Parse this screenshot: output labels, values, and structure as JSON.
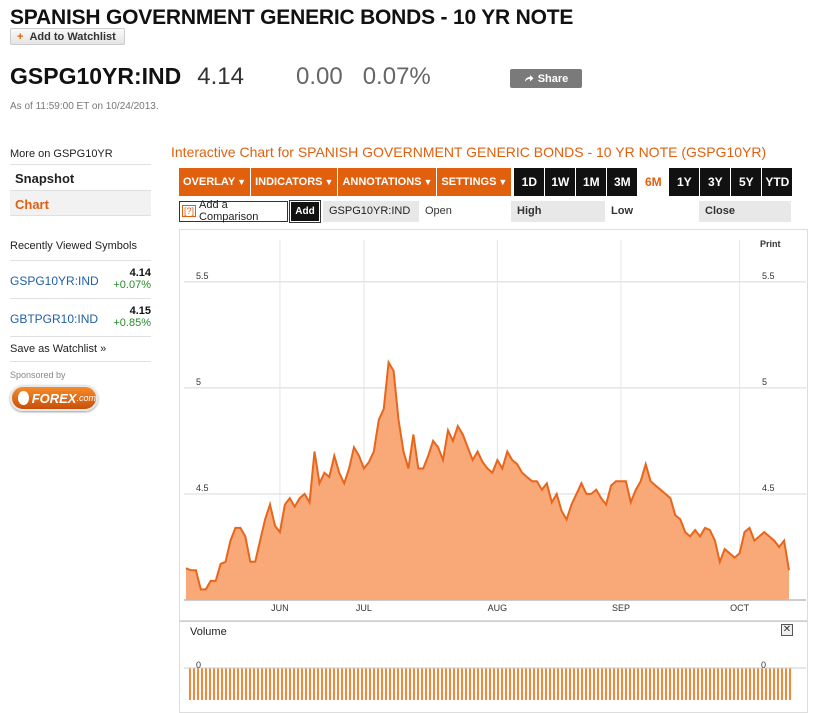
{
  "page": {
    "title": "SPANISH GOVERNMENT GENERIC BONDS - 10 YR NOTE",
    "watchlist_label": "Add to Watchlist"
  },
  "quote": {
    "symbol": "GSPG10YR:IND",
    "price": "4.14",
    "change": "0.00",
    "change_pct": "0.07%",
    "share_label": "Share",
    "as_of": "As of 11:59:00 ET on 10/24/2013."
  },
  "sidebar": {
    "more_on": "More on GSPG10YR",
    "links": [
      {
        "label": "Snapshot"
      },
      {
        "label": "Chart"
      }
    ],
    "recent_title": "Recently Viewed Symbols",
    "recent": [
      {
        "symbol": "GSPG10YR:IND",
        "price": "4.14",
        "change": "+0.07%"
      },
      {
        "symbol": "GBTPGR10:IND",
        "price": "4.15",
        "change": "+0.85%"
      }
    ],
    "save_label": "Save as Watchlist »",
    "sponsored": "Sponsored by",
    "sponsor_name": "FOREX",
    "sponsor_suffix": ".com"
  },
  "chart_header": {
    "title": "Interactive Chart for SPANISH GOVERNMENT GENERIC BONDS - 10 YR NOTE (GSPG10YR)",
    "menus": [
      {
        "label": "OVERLAY"
      },
      {
        "label": "INDICATORS"
      },
      {
        "label": "ANNOTATIONS"
      },
      {
        "label": "SETTINGS"
      }
    ],
    "ranges": [
      "1D",
      "1W",
      "1M",
      "3M",
      "6M",
      "1Y",
      "3Y",
      "5Y",
      "YTD"
    ],
    "active_range": "6M",
    "compare_help": "[?]",
    "compare_placeholder": "Add a Comparison",
    "add_label": "Add",
    "compare_symbol": "GSPG10YR:IND",
    "ohlc": [
      "Open",
      "High",
      "Low",
      "Close"
    ],
    "print_label": "Print",
    "volume_label": "Volume",
    "close_icon_glyph": "✕",
    "colors": {
      "accent": "#e0600e",
      "area_fill": "#f9a877",
      "area_line": "#e8661c",
      "volume_bar": "#f08a3a"
    }
  },
  "chart_data": {
    "type": "area",
    "title": "",
    "x_ticks": [
      "JUN",
      "JUL",
      "AUG",
      "SEP",
      "OCT"
    ],
    "y_ticks": [
      "4.5",
      "5",
      "5.5"
    ],
    "ylim": [
      4.0,
      5.65
    ],
    "grid": true,
    "series": [
      {
        "values": [
          4.15,
          4.14,
          4.14,
          4.05,
          4.05,
          4.09,
          4.09,
          4.17,
          4.18,
          4.28,
          4.34,
          4.34,
          4.3,
          4.18,
          4.18,
          4.28,
          4.38,
          4.45,
          4.35,
          4.32,
          4.45,
          4.48,
          4.44,
          4.48,
          4.5,
          4.46,
          4.7,
          4.55,
          4.6,
          4.58,
          4.68,
          4.6,
          4.55,
          4.62,
          4.72,
          4.68,
          4.62,
          4.65,
          4.7,
          4.85,
          4.9,
          5.12,
          5.08,
          4.85,
          4.7,
          4.62,
          4.78,
          4.62,
          4.62,
          4.68,
          4.75,
          4.72,
          4.66,
          4.8,
          4.75,
          4.82,
          4.78,
          4.72,
          4.66,
          4.7,
          4.65,
          4.62,
          4.6,
          4.66,
          4.62,
          4.7,
          4.66,
          4.64,
          4.6,
          4.58,
          4.56,
          4.56,
          4.52,
          4.55,
          4.46,
          4.5,
          4.42,
          4.38,
          4.45,
          4.5,
          4.55,
          4.5,
          4.5,
          4.52,
          4.48,
          4.45,
          4.54,
          4.56,
          4.56,
          4.56,
          4.46,
          4.52,
          4.56,
          4.64,
          4.56,
          4.54,
          4.52,
          4.5,
          4.48,
          4.4,
          4.38,
          4.32,
          4.3,
          4.33,
          4.3,
          4.34,
          4.33,
          4.28,
          4.18,
          4.24,
          4.22,
          4.2,
          4.22,
          4.32,
          4.34,
          4.28,
          4.3,
          4.32,
          4.3,
          4.28,
          4.25,
          4.28,
          4.14
        ]
      }
    ],
    "volume_axis_label": "0"
  }
}
